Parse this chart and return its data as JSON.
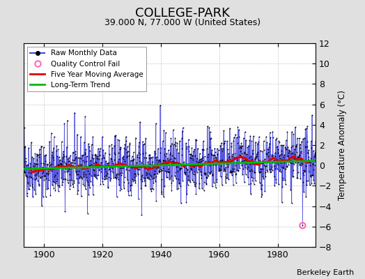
{
  "title": "COLLEGE-PARK",
  "subtitle": "39.000 N, 77.000 W (United States)",
  "ylabel": "Temperature Anomaly (°C)",
  "attribution": "Berkeley Earth",
  "xlim": [
    1893,
    1993
  ],
  "ylim": [
    -8,
    12
  ],
  "yticks": [
    -8,
    -6,
    -4,
    -2,
    0,
    2,
    4,
    6,
    8,
    10,
    12
  ],
  "xticks": [
    1900,
    1920,
    1940,
    1960,
    1980
  ],
  "bg_color": "#e0e0e0",
  "plot_bg_color": "#ffffff",
  "raw_line_color": "#4444dd",
  "raw_dot_color": "#000000",
  "moving_avg_color": "#dd0000",
  "trend_color": "#00bb00",
  "qc_fail_color": "#ff69b4",
  "seed": 42,
  "start_year": 1893,
  "end_year": 1993,
  "trend_slope": 0.008,
  "trend_intercept": -0.35,
  "qc_fail_year": 1988.5,
  "qc_fail_value": -5.9,
  "title_fontsize": 13,
  "subtitle_fontsize": 9,
  "tick_fontsize": 9,
  "ylabel_fontsize": 8.5,
  "legend_fontsize": 7.5,
  "attribution_fontsize": 8
}
